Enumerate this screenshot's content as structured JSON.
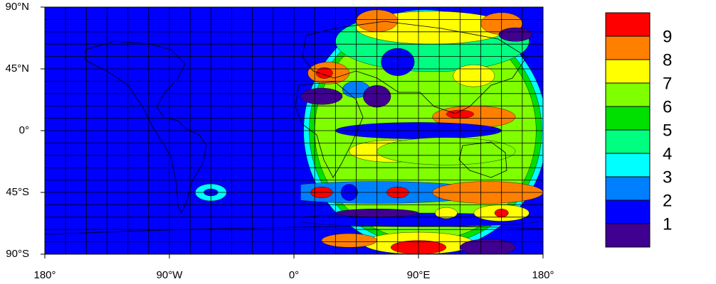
{
  "map": {
    "xlim": [
      -180,
      180
    ],
    "ylim": [
      -90,
      90
    ],
    "xticks": [
      {
        "value": -180,
        "label": "180°"
      },
      {
        "value": -90,
        "label": "90°W"
      },
      {
        "value": 0,
        "label": "0°"
      },
      {
        "value": 90,
        "label": "90°E"
      },
      {
        "value": 180,
        "label": "180°"
      }
    ],
    "yticks": [
      {
        "value": 90,
        "label": "90°N"
      },
      {
        "value": 45,
        "label": "45°N"
      },
      {
        "value": 0,
        "label": "0°"
      },
      {
        "value": -45,
        "label": "45°S"
      },
      {
        "value": -90,
        "label": "90°S"
      }
    ]
  },
  "colorbar": {
    "levels": [
      1,
      2,
      3,
      4,
      5,
      6,
      7,
      8,
      9
    ],
    "colors": [
      "#400090",
      "#0000ff",
      "#0080ff",
      "#00ffff",
      "#00ff80",
      "#00e000",
      "#80ff00",
      "#ffff00",
      "#ff8000",
      "#ff0000"
    ]
  }
}
